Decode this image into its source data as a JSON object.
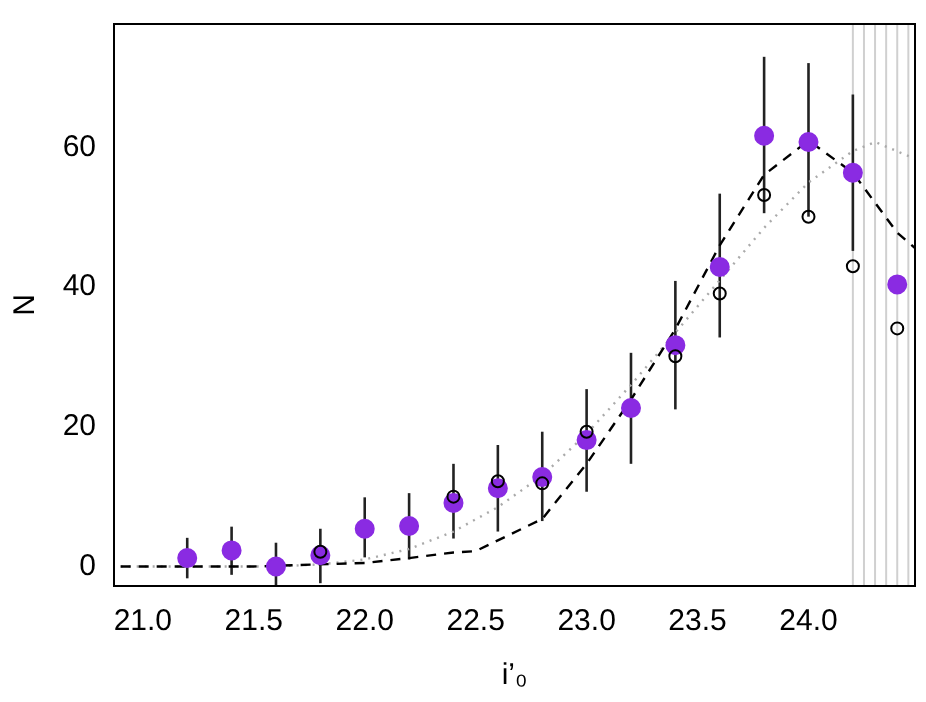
{
  "chart_data": {
    "type": "scatter",
    "xlabel": "i’₀",
    "ylabel": "N",
    "xlim": [
      20.87,
      24.48
    ],
    "ylim": [
      -2.8,
      77.7
    ],
    "xticks": [
      {
        "value": 21,
        "label": "21.0"
      },
      {
        "value": 21.5,
        "label": "21.5"
      },
      {
        "value": 22,
        "label": "22.0"
      },
      {
        "value": 22.5,
        "label": "22.5"
      },
      {
        "value": 23,
        "label": "23.0"
      },
      {
        "value": 23.5,
        "label": "23.5"
      },
      {
        "value": 24,
        "label": "24.0"
      }
    ],
    "yticks": [
      0,
      20,
      40,
      60
    ],
    "grid": false,
    "legend": false,
    "ref_lines": [
      {
        "axis": "x",
        "value": 24.2,
        "color": "#d0d0d0"
      },
      {
        "axis": "x",
        "value": 24.25,
        "color": "#d0d0d0"
      },
      {
        "axis": "x",
        "value": 24.3,
        "color": "#d0d0d0"
      },
      {
        "axis": "x",
        "value": 24.35,
        "color": "#d0d0d0"
      },
      {
        "axis": "x",
        "value": 24.4,
        "color": "#d0d0d0"
      },
      {
        "axis": "x",
        "value": 24.45,
        "color": "#d0d0d0"
      }
    ],
    "series": [
      {
        "type": "line",
        "color": "#000000",
        "marker": "none",
        "line_style": "dashed",
        "x": [
          20.9,
          21.5,
          22.0,
          22.2,
          22.4,
          22.5,
          22.8,
          23.0,
          23.2,
          23.4,
          23.6,
          23.8,
          24.0,
          24.2,
          24.4,
          24.48
        ],
        "values": [
          0,
          0,
          0.5,
          1.2,
          2,
          2.2,
          6.8,
          14.7,
          23.9,
          34,
          46,
          56.1,
          61,
          56.4,
          47.8,
          45.6
        ]
      },
      {
        "type": "line",
        "color": "#aaaaaa",
        "marker": "none",
        "line_style": "dotted",
        "x": [
          20.9,
          21.6,
          21.8,
          22.0,
          22.2,
          22.4,
          22.6,
          22.8,
          23.0,
          23.2,
          23.4,
          23.6,
          23.8,
          24.0,
          24.2,
          24.3,
          24.48
        ],
        "values": [
          0,
          0,
          0.3,
          1,
          2.5,
          5,
          8.5,
          13,
          19,
          26,
          33.5,
          41,
          48.5,
          55,
          59.5,
          60.8,
          58.4
        ]
      },
      {
        "color": "#000000",
        "marker": "circle",
        "x": [
          21.8,
          22.4,
          22.6,
          22.8,
          23.0,
          23.4,
          23.6,
          23.8,
          24.0,
          24.2,
          24.4
        ],
        "values": [
          2.1,
          10,
          12.2,
          11.9,
          19.3,
          30.1,
          39.1,
          53.2,
          50.1,
          43,
          34.1
        ]
      },
      {
        "color": "#8a2be2",
        "marker": "circle",
        "x": [
          21.2,
          21.4,
          21.6,
          21.8,
          22.0,
          22.2,
          22.4,
          22.6,
          22.8,
          23.0,
          23.2,
          23.4,
          23.6,
          23.8,
          24.0,
          24.2,
          24.4
        ],
        "values": [
          1.2,
          2.3,
          0,
          1.6,
          5.4,
          5.8,
          9.1,
          11.2,
          12.8,
          18.1,
          22.7,
          31.7,
          42.9,
          61.7,
          60.8,
          56.4,
          40.4
        ],
        "errors": [
          [
            -1.7,
            4.1
          ],
          [
            -1.2,
            5.7
          ],
          [
            -2.7,
            3.4
          ],
          [
            -2.4,
            5.4
          ],
          [
            1.3,
            9.9
          ],
          [
            1.0,
            10.5
          ],
          [
            4.0,
            14.7
          ],
          [
            5.0,
            17.4
          ],
          [
            6.5,
            19.3
          ],
          [
            10.7,
            25.4
          ],
          [
            14.7,
            30.6
          ],
          [
            22.5,
            40.9
          ],
          [
            32.8,
            53.4
          ],
          [
            50.6,
            73
          ],
          [
            50.1,
            72.1
          ],
          [
            45.2,
            67.6
          ],
          null
        ]
      }
    ]
  }
}
